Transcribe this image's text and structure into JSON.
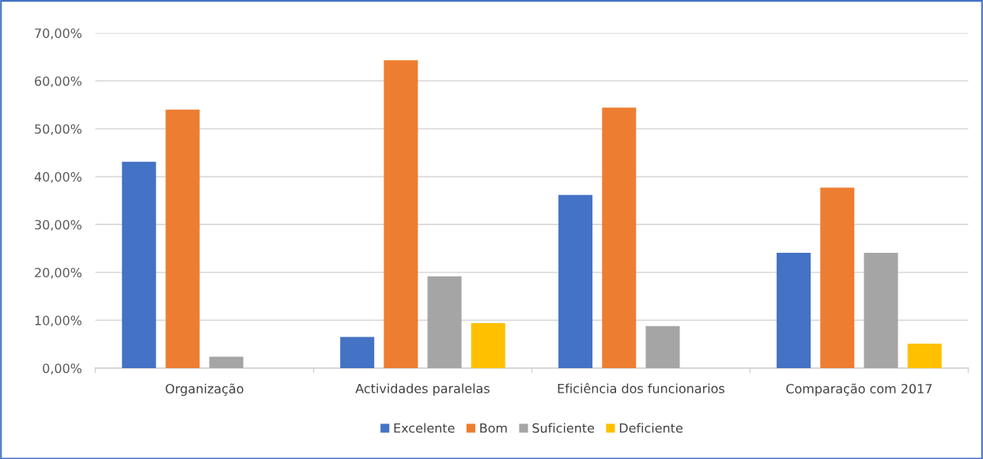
{
  "chart_data": {
    "type": "bar",
    "categories": [
      "Organização",
      "Actividades paralelas",
      "Eficiência dos funcionarios",
      "Comparação com 2017"
    ],
    "series": [
      {
        "name": "Excelente",
        "color": "#4472c4",
        "values": [
          43.1,
          6.5,
          36.2,
          24.1
        ]
      },
      {
        "name": "Bom",
        "color": "#ed7d31",
        "values": [
          54.0,
          64.3,
          54.4,
          37.7
        ]
      },
      {
        "name": "Suficiente",
        "color": "#a5a5a5",
        "values": [
          2.4,
          19.2,
          8.8,
          24.1
        ]
      },
      {
        "name": "Deficiente",
        "color": "#ffc000",
        "values": [
          0,
          9.4,
          0,
          5.1
        ]
      }
    ],
    "ylim": [
      0,
      70
    ],
    "yticks": [
      {
        "value": 0,
        "label": "0,00%"
      },
      {
        "value": 10,
        "label": "10,00%"
      },
      {
        "value": 20,
        "label": "20,00%"
      },
      {
        "value": 30,
        "label": "30,00%"
      },
      {
        "value": 40,
        "label": "40,00%"
      },
      {
        "value": 50,
        "label": "50,00%"
      },
      {
        "value": 60,
        "label": "60,00%"
      },
      {
        "value": 70,
        "label": "70,00%"
      }
    ],
    "grid": "y",
    "legend": "bottom"
  }
}
